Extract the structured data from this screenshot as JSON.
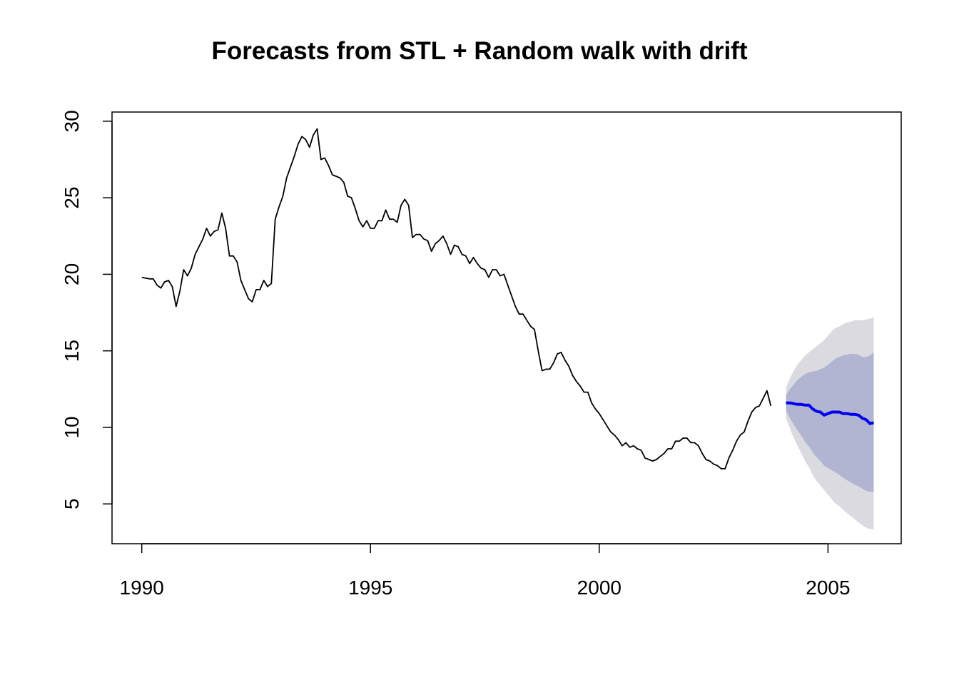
{
  "chart_data": {
    "type": "line",
    "title": "Forecasts from STL +  Random walk with drift",
    "xlabel": "",
    "ylabel": "",
    "xlim": [
      1989.35,
      2006.6
    ],
    "ylim": [
      2.4,
      30.6
    ],
    "x_ticks": [
      1990,
      1995,
      2000,
      2005
    ],
    "x_tick_labels": [
      "1990",
      "1995",
      "2000",
      "2005"
    ],
    "y_ticks": [
      5,
      10,
      15,
      20,
      25,
      30
    ],
    "y_tick_labels": [
      "5",
      "10",
      "15",
      "20",
      "25",
      "30"
    ],
    "grid": false,
    "legend": "none",
    "colors": {
      "history": "#000000",
      "forecast_mean": "#0000ee",
      "band_80": "#b1b5d1",
      "band_95": "#dadae0"
    },
    "history": {
      "start": 1990.0,
      "frequency": 12,
      "values": [
        19.8,
        19.75,
        19.7,
        19.7,
        19.3,
        19.1,
        19.5,
        19.6,
        19.2,
        17.9,
        18.9,
        20.3,
        19.9,
        20.4,
        21.3,
        21.8,
        22.3,
        23.0,
        22.5,
        22.8,
        22.9,
        24.0,
        23.0,
        21.2,
        21.2,
        20.8,
        19.6,
        19.0,
        18.4,
        18.2,
        19.0,
        19.0,
        19.6,
        19.2,
        19.4,
        23.6,
        24.4,
        25.1,
        26.3,
        27.0,
        27.7,
        28.5,
        29.0,
        28.8,
        28.3,
        29.1,
        29.5,
        27.5,
        27.6,
        27.1,
        26.5,
        26.4,
        26.3,
        26.0,
        25.1,
        25.0,
        24.3,
        23.5,
        23.1,
        23.5,
        23.0,
        23.0,
        23.5,
        23.5,
        24.2,
        23.6,
        23.6,
        23.4,
        24.5,
        24.9,
        24.5,
        22.4,
        22.6,
        22.6,
        22.3,
        22.2,
        21.5,
        22.0,
        22.2,
        22.5,
        22.0,
        21.3,
        21.9,
        21.8,
        21.3,
        21.2,
        20.7,
        21.1,
        20.7,
        20.4,
        20.3,
        19.8,
        20.3,
        20.3,
        19.9,
        20.0,
        19.3,
        18.6,
        17.9,
        17.4,
        17.4,
        17.0,
        16.6,
        16.4,
        15.0,
        13.7,
        13.8,
        13.8,
        14.2,
        14.8,
        14.9,
        14.4,
        14.0,
        13.4,
        13.0,
        12.7,
        12.3,
        12.3,
        11.6,
        11.2,
        10.9,
        10.5,
        10.1,
        9.7,
        9.5,
        9.2,
        8.8,
        9.0,
        8.7,
        8.8,
        8.6,
        8.5,
        8.0,
        7.9,
        7.8,
        7.9,
        8.1,
        8.3,
        8.6,
        8.6,
        9.1,
        9.1,
        9.3,
        9.3,
        9.0,
        9.0,
        8.8,
        8.3,
        7.9,
        7.8,
        7.6,
        7.5,
        7.3,
        7.3,
        8.0,
        8.5,
        9.1,
        9.5,
        9.7,
        10.4,
        11.0,
        11.3,
        11.4,
        11.9,
        12.4,
        11.4
      ]
    },
    "forecast": {
      "start": 2004.0833,
      "frequency": 12,
      "mean": [
        11.6,
        11.6,
        11.55,
        11.5,
        11.5,
        11.45,
        11.45,
        11.2,
        11.05,
        11.0,
        10.8,
        10.9,
        11.0,
        11.0,
        11.0,
        10.9,
        10.9,
        10.85,
        10.85,
        10.8,
        10.6,
        10.5,
        10.25,
        10.3
      ],
      "lo80": [
        11.1,
        10.6,
        10.2,
        9.8,
        9.45,
        9.05,
        8.75,
        8.35,
        8.05,
        7.8,
        7.5,
        7.35,
        7.2,
        7.05,
        6.9,
        6.7,
        6.55,
        6.4,
        6.25,
        6.15,
        6.0,
        5.85,
        5.8,
        5.8
      ],
      "hi80": [
        12.1,
        12.5,
        12.8,
        13.1,
        13.3,
        13.5,
        13.6,
        13.65,
        13.7,
        13.8,
        13.9,
        14.1,
        14.3,
        14.5,
        14.6,
        14.7,
        14.75,
        14.8,
        14.8,
        14.75,
        14.6,
        14.6,
        14.7,
        14.9
      ],
      "lo95": [
        10.6,
        9.95,
        9.3,
        8.8,
        8.3,
        7.8,
        7.4,
        6.9,
        6.5,
        6.2,
        5.9,
        5.6,
        5.3,
        5.0,
        4.85,
        4.6,
        4.4,
        4.2,
        4.0,
        3.8,
        3.6,
        3.45,
        3.35,
        3.35
      ],
      "hi95": [
        12.6,
        13.2,
        13.7,
        14.1,
        14.4,
        14.7,
        14.9,
        15.1,
        15.3,
        15.5,
        15.7,
        16.0,
        16.3,
        16.5,
        16.6,
        16.75,
        16.85,
        16.9,
        17.0,
        17.0,
        17.0,
        17.05,
        17.1,
        17.2
      ]
    }
  }
}
